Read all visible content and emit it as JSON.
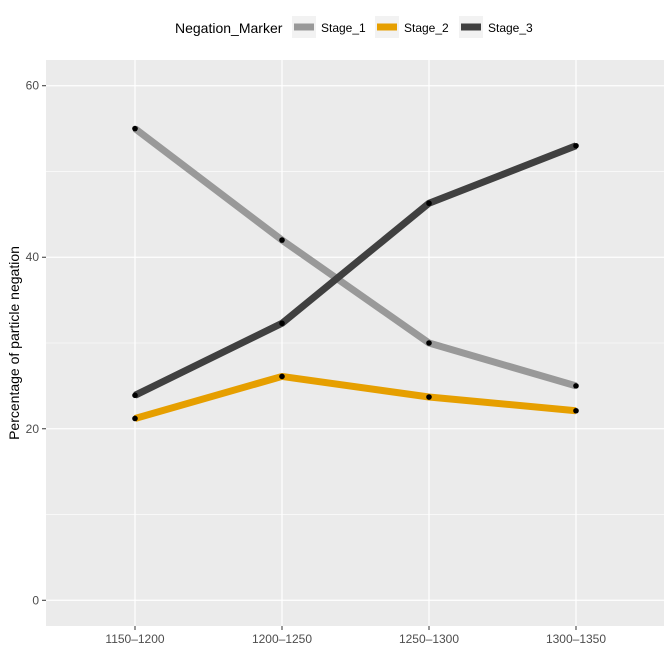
{
  "chart_data": {
    "type": "line",
    "title": "",
    "xlabel": "",
    "ylabel": "Percentage of particle negation",
    "categories": [
      "1150–1200",
      "1200–1250",
      "1250–1300",
      "1300–1350"
    ],
    "ylim": [
      -3,
      63
    ],
    "yticks": [
      0,
      20,
      40,
      60
    ],
    "grid": true,
    "legend": {
      "title": "Negation_Marker",
      "position": "top"
    },
    "series": [
      {
        "name": "Stage_1",
        "color": "#999999",
        "values": [
          55,
          42,
          30,
          25
        ]
      },
      {
        "name": "Stage_2",
        "color": "#E69F00",
        "values": [
          21.2,
          26.1,
          23.7,
          22.1
        ]
      },
      {
        "name": "Stage_3",
        "color": "#404040",
        "values": [
          23.9,
          32.3,
          46.3,
          53
        ]
      }
    ],
    "point_color": "#000000",
    "panel_color": "#EBEBEB",
    "grid_color": "#FFFFFF"
  }
}
